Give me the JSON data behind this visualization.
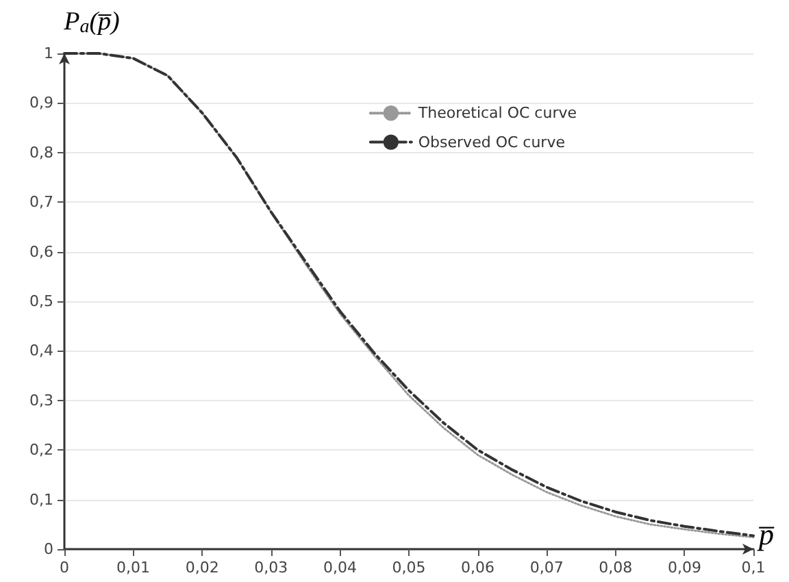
{
  "chart_data": {
    "type": "line",
    "xlabel": "p̅",
    "ylabel": "P$_{a}$(p̅)",
    "x": [
      0,
      0.005,
      0.01,
      0.015,
      0.02,
      0.025,
      0.03,
      0.035,
      0.04,
      0.045,
      0.05,
      0.055,
      0.06,
      0.065,
      0.07,
      0.075,
      0.08,
      0.085,
      0.09,
      0.095,
      0.1
    ],
    "series": [
      {
        "name": "Theoretical OC curve",
        "color": "#999999",
        "line_style": "dotted",
        "values": [
          1,
          1,
          0.99,
          0.955,
          0.88,
          0.79,
          0.68,
          0.575,
          0.475,
          0.39,
          0.31,
          0.245,
          0.19,
          0.15,
          0.115,
          0.088,
          0.066,
          0.05,
          0.04,
          0.031,
          0.024
        ]
      },
      {
        "name": "Observed OC curve",
        "color": "#333333",
        "line_style": "dashed",
        "values": [
          1,
          1,
          0.99,
          0.955,
          0.88,
          0.79,
          0.68,
          0.58,
          0.48,
          0.395,
          0.32,
          0.255,
          0.2,
          0.16,
          0.125,
          0.097,
          0.075,
          0.058,
          0.046,
          0.036,
          0.027
        ]
      }
    ],
    "xlim": [
      0,
      0.1
    ],
    "ylim": [
      0,
      1
    ],
    "xticks": [
      0,
      {
        "value": 0.01,
        "label": "0,01"
      },
      {
        "value": 0.02,
        "label": "0,02"
      },
      {
        "value": 0.03,
        "label": "0,03"
      },
      {
        "value": 0.04,
        "label": "0,04"
      },
      {
        "value": 0.05,
        "label": "0,05"
      },
      {
        "value": 0.06,
        "label": "0,06"
      },
      {
        "value": 0.07,
        "label": "0,07"
      },
      {
        "value": 0.08,
        "label": "0,08"
      },
      {
        "value": 0.09,
        "label": "0,09"
      },
      {
        "value": 0.1,
        "label": "0,1"
      }
    ],
    "yticks": [
      0,
      {
        "value": 0.1,
        "label": "0,1"
      },
      {
        "value": 0.2,
        "label": "0,2"
      },
      {
        "value": 0.3,
        "label": "0,3"
      },
      {
        "value": 0.4,
        "label": "0,4"
      },
      {
        "value": 0.5,
        "label": "0,5"
      },
      {
        "value": 0.6,
        "label": "0,6"
      },
      {
        "value": 0.7,
        "label": "0,7"
      },
      {
        "value": 0.8,
        "label": "0,8"
      },
      {
        "value": 0.9,
        "label": "0,9"
      },
      1
    ],
    "grid": "y",
    "legend": "top right",
    "marker": "none"
  }
}
